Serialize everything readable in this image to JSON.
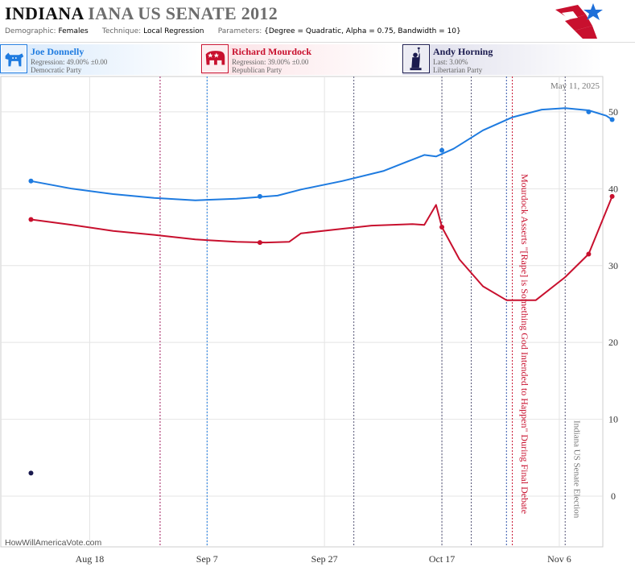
{
  "header": {
    "state": "INDIANA",
    "rest": "IANA US SENATE 2012",
    "demographic_label": "Demographic:",
    "demographic": "Females",
    "technique_label": "Technique:",
    "technique": "Local Regression",
    "parameters_label": "Parameters:",
    "parameters": "{Degree = Quadratic, Alpha = 0.75, Bandwidth = 10}"
  },
  "candidates": [
    {
      "name": "Joe Donnelly",
      "line1": "Regression: 49.00% ±0.00",
      "line2": "Democratic Party",
      "color": "#1e7be0",
      "icon": "donkey-icon"
    },
    {
      "name": "Richard Mourdock",
      "line1": "Regression: 39.00% ±0.00",
      "line2": "Republican Party",
      "color": "#c8102e",
      "icon": "elephant-icon"
    },
    {
      "name": "Andy Horning",
      "line1": "Last: 3.00%",
      "line2": "Libertarian Party",
      "color": "#1a1a4e",
      "icon": "statue-of-liberty-icon"
    }
  ],
  "date_label": "May 11, 2025",
  "watermark": "HowWillAmericaVote.com",
  "chart_data": {
    "type": "line",
    "x_ticks": [
      "Aug 18",
      "Sep 7",
      "Sep 27",
      "Oct 17",
      "Nov 6"
    ],
    "xlim": [
      "2012-08-03",
      "2012-11-13"
    ],
    "ylim": [
      -6.5,
      54.5
    ],
    "y_ticks": [
      0,
      10,
      20,
      30,
      40,
      50
    ],
    "y_axis_side": "right",
    "grid": true,
    "series": [
      {
        "name": "Joe Donnelly",
        "color": "#1e7be0",
        "line": [
          [
            "2012-08-08",
            41
          ],
          [
            "2012-08-15",
            40
          ],
          [
            "2012-08-22",
            39.3
          ],
          [
            "2012-08-29",
            38.8
          ],
          [
            "2012-09-05",
            38.5
          ],
          [
            "2012-09-12",
            38.7
          ],
          [
            "2012-09-19",
            39.1
          ],
          [
            "2012-09-23",
            39.9
          ],
          [
            "2012-09-30",
            41
          ],
          [
            "2012-10-07",
            42.3
          ],
          [
            "2012-10-10",
            43.2
          ],
          [
            "2012-10-14",
            44.4
          ],
          [
            "2012-10-16",
            44.2
          ],
          [
            "2012-10-19",
            45.2
          ],
          [
            "2012-10-24",
            47.6
          ],
          [
            "2012-10-29",
            49.3
          ],
          [
            "2012-11-03",
            50.3
          ],
          [
            "2012-11-07",
            50.5
          ],
          [
            "2012-11-11",
            50.2
          ],
          [
            "2012-11-14",
            49.5
          ],
          [
            "2012-11-15",
            49
          ]
        ],
        "points": [
          [
            "2012-08-08",
            41
          ],
          [
            "2012-09-16",
            39
          ],
          [
            "2012-10-17",
            45
          ],
          [
            "2012-11-11",
            50
          ],
          [
            "2012-11-15",
            49
          ]
        ]
      },
      {
        "name": "Richard Mourdock",
        "color": "#c8102e",
        "line": [
          [
            "2012-08-08",
            36
          ],
          [
            "2012-08-15",
            35.3
          ],
          [
            "2012-08-22",
            34.5
          ],
          [
            "2012-08-29",
            34
          ],
          [
            "2012-09-05",
            33.4
          ],
          [
            "2012-09-12",
            33.1
          ],
          [
            "2012-09-17",
            33
          ],
          [
            "2012-09-21",
            33.1
          ],
          [
            "2012-09-23",
            34.2
          ],
          [
            "2012-09-29",
            34.7
          ],
          [
            "2012-10-05",
            35.2
          ],
          [
            "2012-10-12",
            35.4
          ],
          [
            "2012-10-14",
            35.3
          ],
          [
            "2012-10-16",
            37.9
          ],
          [
            "2012-10-17",
            35
          ],
          [
            "2012-10-20",
            30.8
          ],
          [
            "2012-10-24",
            27.3
          ],
          [
            "2012-10-28",
            25.5
          ],
          [
            "2012-11-02",
            25.5
          ],
          [
            "2012-11-07",
            28.5
          ],
          [
            "2012-11-11",
            31.5
          ],
          [
            "2012-11-15",
            39
          ]
        ],
        "points": [
          [
            "2012-08-08",
            36
          ],
          [
            "2012-09-16",
            33
          ],
          [
            "2012-10-17",
            35
          ],
          [
            "2012-11-11",
            31.5
          ],
          [
            "2012-11-15",
            39
          ]
        ]
      },
      {
        "name": "Andy Horning",
        "color": "#1a1a4e",
        "line": [],
        "points": [
          [
            "2012-08-08",
            3
          ]
        ]
      }
    ],
    "event_lines": [
      {
        "date": "2012-08-30",
        "color": "#a02060"
      },
      {
        "date": "2012-09-07",
        "color": "#1e7be0"
      },
      {
        "date": "2012-10-02",
        "color": "#555577"
      },
      {
        "date": "2012-10-17",
        "color": "#555577"
      },
      {
        "date": "2012-10-22",
        "color": "#555577"
      },
      {
        "date": "2012-10-28",
        "color": "#3355aa"
      },
      {
        "date": "2012-10-29",
        "color": "#c8102e"
      },
      {
        "date": "2012-11-07",
        "color": "#555577"
      }
    ],
    "annotations": [
      {
        "text": "Mourdock Asserts \"[Rape] is Something God Intended to Happen\" During Final Debate",
        "date": "2012-10-30",
        "color": "#c8102e"
      },
      {
        "text": "Indiana US Senate Election",
        "date": "2012-11-08",
        "color": "#777777"
      }
    ]
  }
}
